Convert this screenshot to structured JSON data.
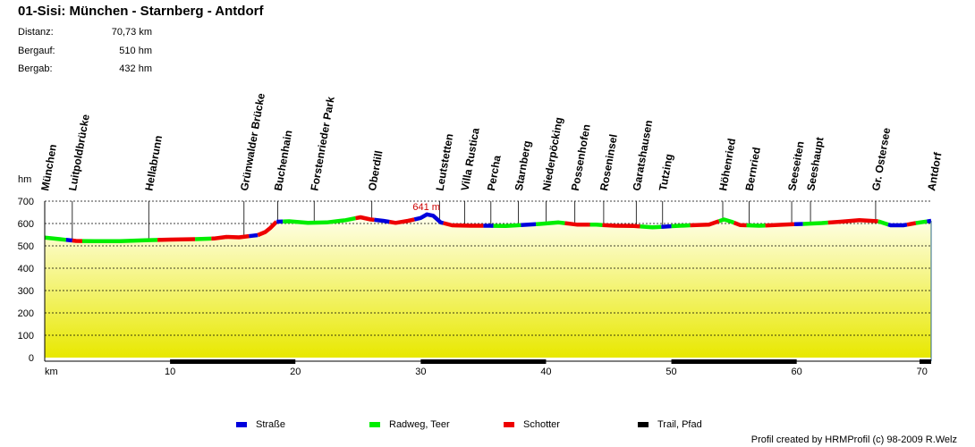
{
  "title": "01-Sisi: München - Starnberg - Antdorf",
  "stats": [
    {
      "label": "Distanz:",
      "value": "70,73 km"
    },
    {
      "label": "Bergauf:",
      "value": "510 hm"
    },
    {
      "label": "Bergab:",
      "value": "432 hm"
    }
  ],
  "colors": {
    "strasse": "#0000dd",
    "radweg": "#00ee00",
    "schotter": "#ee0000",
    "trail": "#000000",
    "peak": "#cc0000",
    "fill_top": "#ffffee",
    "fill_bottom": "#e8e800"
  },
  "chart_data": {
    "type": "area",
    "title": "01-Sisi: München - Starnberg - Antdorf",
    "ylabel": "hm",
    "xlabel": "km",
    "xlim": [
      0,
      70.73
    ],
    "ylim": [
      0,
      700
    ],
    "yticks": [
      0,
      100,
      200,
      300,
      400,
      500,
      600,
      700
    ],
    "xticks": [
      10,
      20,
      30,
      40,
      50,
      60,
      70
    ],
    "peak_label": "641 m",
    "peak_km": 30.5,
    "peak_alt": 641,
    "profile": [
      [
        0,
        537
      ],
      [
        1.2,
        530
      ],
      [
        2.5,
        522
      ],
      [
        4,
        521
      ],
      [
        6,
        521
      ],
      [
        8,
        525
      ],
      [
        10,
        528
      ],
      [
        12,
        530
      ],
      [
        13.5,
        533
      ],
      [
        14.5,
        540
      ],
      [
        15.5,
        538
      ],
      [
        16.5,
        545
      ],
      [
        17,
        548
      ],
      [
        17.6,
        562
      ],
      [
        18,
        580
      ],
      [
        18.5,
        608
      ],
      [
        19.5,
        610
      ],
      [
        21,
        603
      ],
      [
        22.5,
        605
      ],
      [
        24,
        615
      ],
      [
        25.2,
        628
      ],
      [
        26,
        618
      ],
      [
        27,
        612
      ],
      [
        28,
        603
      ],
      [
        29,
        612
      ],
      [
        30,
        625
      ],
      [
        30.5,
        641
      ],
      [
        31,
        635
      ],
      [
        31.6,
        605
      ],
      [
        32.5,
        592
      ],
      [
        34,
        590
      ],
      [
        35.5,
        590
      ],
      [
        36.8,
        589
      ],
      [
        38,
        593
      ],
      [
        39.5,
        598
      ],
      [
        41,
        605
      ],
      [
        42.5,
        595
      ],
      [
        44,
        595
      ],
      [
        45.5,
        590
      ],
      [
        47,
        589
      ],
      [
        48.5,
        583
      ],
      [
        50,
        588
      ],
      [
        51.5,
        592
      ],
      [
        53,
        595
      ],
      [
        54.2,
        618
      ],
      [
        54.8,
        608
      ],
      [
        55.5,
        593
      ],
      [
        57,
        590
      ],
      [
        59,
        595
      ],
      [
        60.5,
        598
      ],
      [
        62,
        602
      ],
      [
        63.5,
        608
      ],
      [
        65,
        615
      ],
      [
        66.5,
        610
      ],
      [
        67.5,
        592
      ],
      [
        68.5,
        592
      ],
      [
        69.5,
        602
      ],
      [
        70.5,
        610
      ],
      [
        70.73,
        612
      ]
    ],
    "surface_segments": [
      {
        "type": "radweg",
        "from": 0,
        "to": 1.7
      },
      {
        "type": "strasse",
        "from": 1.7,
        "to": 2.2
      },
      {
        "type": "schotter",
        "from": 2.2,
        "to": 3
      },
      {
        "type": "radweg",
        "from": 3,
        "to": 9
      },
      {
        "type": "schotter",
        "from": 9,
        "to": 12
      },
      {
        "type": "radweg",
        "from": 12,
        "to": 13.3
      },
      {
        "type": "schotter",
        "from": 13.3,
        "to": 16.3
      },
      {
        "type": "strasse",
        "from": 16.3,
        "to": 17
      },
      {
        "type": "schotter",
        "from": 17,
        "to": 18.5
      },
      {
        "type": "strasse",
        "from": 18.5,
        "to": 19
      },
      {
        "type": "radweg",
        "from": 19,
        "to": 24.8
      },
      {
        "type": "schotter",
        "from": 24.8,
        "to": 26.3
      },
      {
        "type": "strasse",
        "from": 26.3,
        "to": 27.5
      },
      {
        "type": "schotter",
        "from": 27.5,
        "to": 29.5
      },
      {
        "type": "strasse",
        "from": 29.5,
        "to": 31.8
      },
      {
        "type": "schotter",
        "from": 31.8,
        "to": 35
      },
      {
        "type": "strasse",
        "from": 35,
        "to": 35.8
      },
      {
        "type": "radweg",
        "from": 35.8,
        "to": 38
      },
      {
        "type": "strasse",
        "from": 38,
        "to": 39.2
      },
      {
        "type": "radweg",
        "from": 39.2,
        "to": 41.5
      },
      {
        "type": "schotter",
        "from": 41.5,
        "to": 43.5
      },
      {
        "type": "radweg",
        "from": 43.5,
        "to": 44.5
      },
      {
        "type": "schotter",
        "from": 44.5,
        "to": 47.5
      },
      {
        "type": "radweg",
        "from": 47.5,
        "to": 49.2
      },
      {
        "type": "strasse",
        "from": 49.2,
        "to": 50
      },
      {
        "type": "radweg",
        "from": 50,
        "to": 51.5
      },
      {
        "type": "schotter",
        "from": 51.5,
        "to": 53.8
      },
      {
        "type": "radweg",
        "from": 53.8,
        "to": 55
      },
      {
        "type": "schotter",
        "from": 55,
        "to": 56
      },
      {
        "type": "radweg",
        "from": 56,
        "to": 57.5
      },
      {
        "type": "schotter",
        "from": 57.5,
        "to": 59.8
      },
      {
        "type": "strasse",
        "from": 59.8,
        "to": 60.5
      },
      {
        "type": "radweg",
        "from": 60.5,
        "to": 62.5
      },
      {
        "type": "schotter",
        "from": 62.5,
        "to": 66.5
      },
      {
        "type": "radweg",
        "from": 66.5,
        "to": 67.3
      },
      {
        "type": "strasse",
        "from": 67.3,
        "to": 68.8
      },
      {
        "type": "schotter",
        "from": 68.8,
        "to": 69.5
      },
      {
        "type": "radweg",
        "from": 69.5,
        "to": 70.4
      },
      {
        "type": "strasse",
        "from": 70.4,
        "to": 70.73
      }
    ],
    "trail_segments": [
      {
        "from": 10,
        "to": 20
      },
      {
        "from": 30,
        "to": 40
      },
      {
        "from": 50,
        "to": 60
      },
      {
        "from": 69.8,
        "to": 70.73
      }
    ],
    "waypoints": [
      {
        "name": "München",
        "km": 0
      },
      {
        "name": "Luitpoldbrücke",
        "km": 2.2
      },
      {
        "name": "Hellabrunn",
        "km": 8.3
      },
      {
        "name": "Grünwalder Brücke",
        "km": 15.9
      },
      {
        "name": "Buchenhain",
        "km": 18.6
      },
      {
        "name": "Forstenrieder Park",
        "km": 21.5
      },
      {
        "name": "Oberdill",
        "km": 26.1
      },
      {
        "name": "Leutstetten",
        "km": 31.5
      },
      {
        "name": "Villa Rustica",
        "km": 33.5
      },
      {
        "name": "Percha",
        "km": 35.6
      },
      {
        "name": "Starnberg",
        "km": 37.8
      },
      {
        "name": "Niederpöcking",
        "km": 40
      },
      {
        "name": "Possenhofen",
        "km": 42.3
      },
      {
        "name": "Roseninsel",
        "km": 44.6
      },
      {
        "name": "Garatshausen",
        "km": 47.2
      },
      {
        "name": "Tutzing",
        "km": 49.3
      },
      {
        "name": "Höhenried",
        "km": 54.1
      },
      {
        "name": "Bernried",
        "km": 56.2
      },
      {
        "name": "Seeseiten",
        "km": 59.6
      },
      {
        "name": "Seeshaupt",
        "km": 61.1
      },
      {
        "name": "Gr. Ostersee",
        "km": 66.3
      },
      {
        "name": "Antdorf",
        "km": 70.73
      }
    ]
  },
  "legend": [
    {
      "key": "strasse",
      "label": "Straße"
    },
    {
      "key": "radweg",
      "label": "Radweg, Teer"
    },
    {
      "key": "schotter",
      "label": "Schotter"
    },
    {
      "key": "trail",
      "label": "Trail, Pfad"
    }
  ],
  "credit": "Profil created by HRMProfil (c) 98-2009 R.Welz"
}
